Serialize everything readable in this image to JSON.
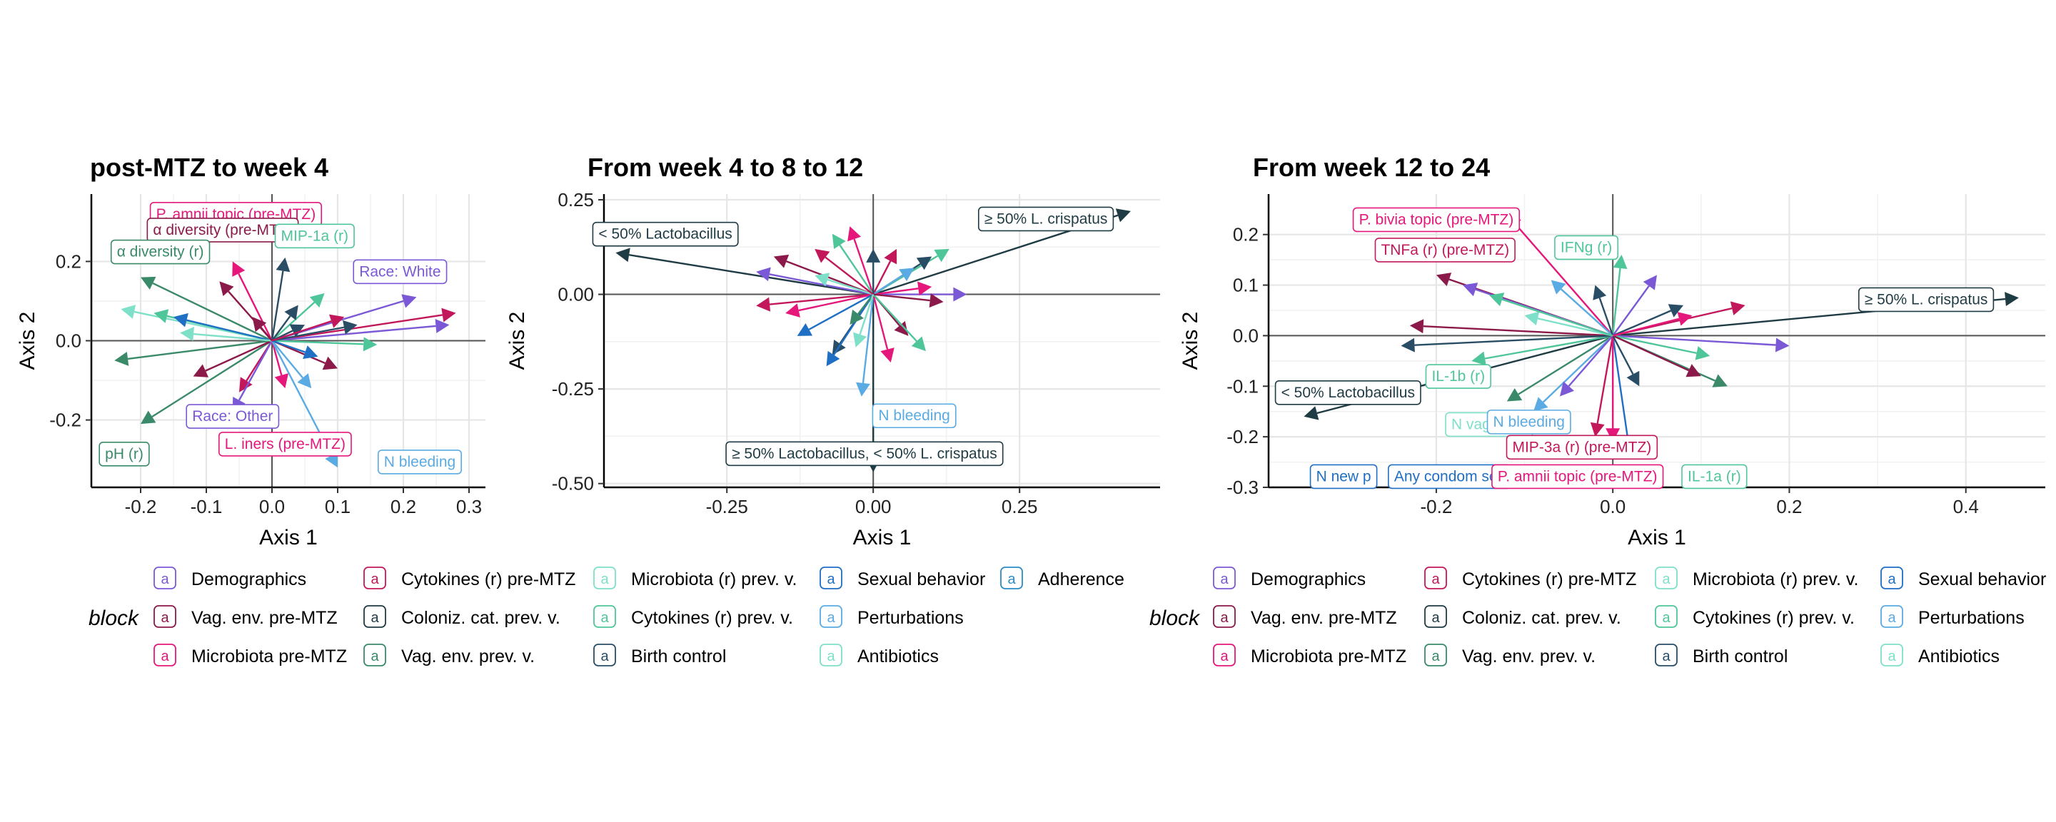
{
  "chart_data": [
    {
      "type": "scatter",
      "title": "post-MTZ to week 4",
      "xlabel": "Axis 1",
      "ylabel": "Axis 2",
      "xlim": [
        -0.275,
        0.325
      ],
      "ylim": [
        -0.37,
        0.37
      ],
      "xticks": [
        -0.2,
        -0.1,
        0.0,
        0.1,
        0.2,
        0.3
      ],
      "xtick_labels": [
        "-0.2",
        "-0.1",
        "0.0",
        "0.1",
        "0.2",
        "0.3"
      ],
      "yticks": [
        -0.2,
        0.0,
        0.2
      ],
      "ytick_labels": [
        "-0.2",
        "0.0",
        "0.2"
      ],
      "labels": [
        {
          "text": "P. amnii topic (pre-MTZ)",
          "x": -0.055,
          "y": 0.32,
          "color": "#e5177b",
          "block": "Microbiota pre-MTZ"
        },
        {
          "text": "α diversity (pre-MTZ)",
          "x": -0.075,
          "y": 0.28,
          "color": "#8b1a4a",
          "block": "Vag. env. pre-MTZ"
        },
        {
          "text": "MIP-1a (r)",
          "x": 0.065,
          "y": 0.265,
          "color": "#4fc69a",
          "block": "Cytokines (r) prev. v."
        },
        {
          "text": "α diversity (r)",
          "x": -0.17,
          "y": 0.225,
          "color": "#3a8a6a",
          "block": "Vag. env. prev. v."
        },
        {
          "text": "Race: White",
          "x": 0.195,
          "y": 0.175,
          "color": "#7b59d6",
          "block": "Demographics"
        },
        {
          "text": "Race: Other",
          "x": -0.06,
          "y": -0.19,
          "color": "#7b59d6",
          "block": "Demographics"
        },
        {
          "text": "L. iners (pre-MTZ)",
          "x": 0.02,
          "y": -0.26,
          "color": "#e5177b",
          "block": "Microbiota pre-MTZ"
        },
        {
          "text": "pH (r)",
          "x": -0.225,
          "y": -0.285,
          "color": "#3a8a6a",
          "block": "Vag. env. prev. v."
        },
        {
          "text": "N bleeding",
          "x": 0.225,
          "y": -0.305,
          "color": "#5aabe3",
          "block": "Perturbations"
        }
      ],
      "arrows": [
        {
          "x": 0.28,
          "y": 0.07,
          "color": "#c2185b"
        },
        {
          "x": 0.27,
          "y": 0.04,
          "color": "#7b59d6"
        },
        {
          "x": 0.22,
          "y": 0.11,
          "color": "#7b59d6"
        },
        {
          "x": 0.16,
          "y": -0.01,
          "color": "#4fc69a"
        },
        {
          "x": 0.13,
          "y": 0.04,
          "color": "#2a4d66"
        },
        {
          "x": 0.1,
          "y": -0.07,
          "color": "#8b1a4a"
        },
        {
          "x": 0.08,
          "y": 0.12,
          "color": "#4fc69a"
        },
        {
          "x": 0.06,
          "y": -0.12,
          "color": "#5aabe3"
        },
        {
          "x": 0.04,
          "y": 0.09,
          "color": "#2a4d66"
        },
        {
          "x": 0.02,
          "y": 0.21,
          "color": "#2a4d66"
        },
        {
          "x": -0.06,
          "y": 0.2,
          "color": "#e5177b"
        },
        {
          "x": -0.08,
          "y": 0.15,
          "color": "#8b1a4a"
        },
        {
          "x": -0.2,
          "y": 0.16,
          "color": "#3a8a6a"
        },
        {
          "x": -0.23,
          "y": 0.08,
          "color": "#7ee0c8"
        },
        {
          "x": -0.18,
          "y": 0.07,
          "color": "#4fc69a"
        },
        {
          "x": -0.15,
          "y": 0.06,
          "color": "#1f6fc5"
        },
        {
          "x": -0.24,
          "y": -0.05,
          "color": "#3a8a6a"
        },
        {
          "x": -0.2,
          "y": -0.21,
          "color": "#3a8a6a"
        },
        {
          "x": -0.12,
          "y": -0.09,
          "color": "#8b1a4a"
        },
        {
          "x": -0.05,
          "y": -0.13,
          "color": "#c2185b"
        },
        {
          "x": 0.02,
          "y": -0.12,
          "color": "#e5177b"
        },
        {
          "x": 0.1,
          "y": -0.32,
          "color": "#5aabe3"
        },
        {
          "x": -0.06,
          "y": -0.18,
          "color": "#7b59d6"
        },
        {
          "x": -0.14,
          "y": 0.02,
          "color": "#7ee0c8"
        },
        {
          "x": 0.07,
          "y": -0.04,
          "color": "#1f6fc5"
        },
        {
          "x": 0.05,
          "y": 0.04,
          "color": "#2a4d66"
        },
        {
          "x": -0.03,
          "y": 0.06,
          "color": "#8b1a4a"
        },
        {
          "x": 0.11,
          "y": 0.06,
          "color": "#c2185b"
        }
      ]
    },
    {
      "type": "scatter",
      "title": "From week 4 to 8 to 12",
      "xlabel": "Axis 1",
      "ylabel": "Axis 2",
      "xlim": [
        -0.46,
        0.49
      ],
      "ylim": [
        -0.51,
        0.265
      ],
      "xticks": [
        -0.25,
        0.0,
        0.25
      ],
      "xtick_labels": [
        "-0.25",
        "0.00",
        "0.25"
      ],
      "yticks": [
        -0.5,
        -0.25,
        0.0,
        0.25
      ],
      "ytick_labels": [
        "-0.50",
        "-0.25",
        "0.00",
        "0.25"
      ],
      "labels": [
        {
          "text": "< 50% Lactobacillus",
          "x": -0.355,
          "y": 0.16,
          "color": "#1f3b44",
          "block": "Coloniz. cat. prev. v."
        },
        {
          "text": "≥ 50% L. crispatus",
          "x": 0.295,
          "y": 0.2,
          "color": "#1f3b44",
          "block": "Coloniz. cat. prev. v."
        },
        {
          "text": "N bleeding",
          "x": 0.07,
          "y": -0.32,
          "color": "#5aabe3",
          "block": "Perturbations"
        },
        {
          "text": "≥ 50% Lactobacillus, < 50% L. crispatus",
          "x": -0.015,
          "y": -0.42,
          "color": "#1f3b44",
          "block": "Coloniz. cat. prev. v."
        }
      ],
      "arrows": [
        {
          "x": -0.44,
          "y": 0.11,
          "color": "#1f3b44"
        },
        {
          "x": 0.44,
          "y": 0.22,
          "color": "#1f3b44"
        },
        {
          "x": 0.0,
          "y": -0.47,
          "color": "#1f3b44"
        },
        {
          "x": -0.02,
          "y": -0.27,
          "color": "#5aabe3"
        },
        {
          "x": 0.16,
          "y": 0.0,
          "color": "#7b59d6"
        },
        {
          "x": 0.13,
          "y": 0.12,
          "color": "#4fc69a"
        },
        {
          "x": 0.1,
          "y": 0.1,
          "color": "#2a4d66"
        },
        {
          "x": 0.1,
          "y": 0.02,
          "color": "#e5177b"
        },
        {
          "x": -0.04,
          "y": 0.18,
          "color": "#e5177b"
        },
        {
          "x": -0.07,
          "y": 0.16,
          "color": "#4fc69a"
        },
        {
          "x": -0.17,
          "y": 0.1,
          "color": "#8b1a4a"
        },
        {
          "x": -0.2,
          "y": 0.06,
          "color": "#7b59d6"
        },
        {
          "x": -0.2,
          "y": -0.03,
          "color": "#c2185b"
        },
        {
          "x": -0.15,
          "y": -0.05,
          "color": "#e5177b"
        },
        {
          "x": -0.13,
          "y": -0.11,
          "color": "#1f6fc5"
        },
        {
          "x": -0.07,
          "y": -0.16,
          "color": "#2a4d66"
        },
        {
          "x": -0.08,
          "y": -0.19,
          "color": "#1f6fc5"
        },
        {
          "x": 0.03,
          "y": -0.18,
          "color": "#e5177b"
        },
        {
          "x": 0.06,
          "y": -0.11,
          "color": "#8b1a4a"
        },
        {
          "x": 0.09,
          "y": -0.15,
          "color": "#4fc69a"
        },
        {
          "x": 0.04,
          "y": 0.12,
          "color": "#c2185b"
        },
        {
          "x": -0.1,
          "y": 0.05,
          "color": "#7ee0c8"
        },
        {
          "x": 0.07,
          "y": 0.07,
          "color": "#5aabe3"
        },
        {
          "x": -0.04,
          "y": -0.08,
          "color": "#3a8a6a"
        },
        {
          "x": 0.0,
          "y": 0.12,
          "color": "#2a4d66"
        },
        {
          "x": -0.1,
          "y": 0.12,
          "color": "#c2185b"
        },
        {
          "x": 0.12,
          "y": -0.02,
          "color": "#8b1a4a"
        },
        {
          "x": -0.03,
          "y": -0.14,
          "color": "#7ee0c8"
        }
      ]
    },
    {
      "type": "scatter",
      "title": "From week 12 to 24",
      "xlabel": "Axis 1",
      "ylabel": "Axis 2",
      "xlim": [
        -0.39,
        0.49
      ],
      "ylim": [
        -0.3,
        0.28
      ],
      "xticks": [
        -0.2,
        0.0,
        0.2,
        0.4
      ],
      "xtick_labels": [
        "-0.2",
        "0.0",
        "0.2",
        "0.4"
      ],
      "yticks": [
        -0.3,
        -0.2,
        -0.1,
        0.0,
        0.1,
        0.2
      ],
      "ytick_labels": [
        "-0.3",
        "-0.2",
        "-0.1",
        "0.0",
        "0.1",
        "0.2"
      ],
      "labels": [
        {
          "text": "P. bivia topic (pre-MTZ)",
          "x": -0.2,
          "y": 0.23,
          "color": "#e5177b",
          "block": "Microbiota pre-MTZ"
        },
        {
          "text": "TNFa (r) (pre-MTZ)",
          "x": -0.19,
          "y": 0.17,
          "color": "#c2185b",
          "block": "Cytokines (r) pre-MTZ"
        },
        {
          "text": "IFNg (r)",
          "x": -0.03,
          "y": 0.175,
          "color": "#4fc69a",
          "block": "Cytokines (r) prev. v."
        },
        {
          "text": "≥ 50% L. crispatus",
          "x": 0.355,
          "y": 0.072,
          "color": "#1f3b44",
          "block": "Coloniz. cat. prev. v."
        },
        {
          "text": "IL-1b (r)",
          "x": -0.175,
          "y": -0.08,
          "color": "#4fc69a",
          "block": "Cytokines (r) prev. v."
        },
        {
          "text": "< 50% Lactobacillus",
          "x": -0.3,
          "y": -0.112,
          "color": "#1f3b44",
          "block": "Coloniz. cat. prev. v."
        },
        {
          "text": "N vag. abx.",
          "x": -0.14,
          "y": -0.175,
          "color": "#7ee0c8",
          "block": "Antibiotics"
        },
        {
          "text": "N bleeding",
          "x": -0.095,
          "y": -0.17,
          "color": "#5aabe3",
          "block": "Perturbations"
        },
        {
          "text": "MIP-3a (r) (pre-MTZ)",
          "x": -0.035,
          "y": -0.22,
          "color": "#c2185b",
          "block": "Cytokines (r) pre-MTZ"
        },
        {
          "text": "N new p",
          "x": -0.305,
          "y": -0.278,
          "color": "#1f6fc5",
          "block": "Sexual behavior"
        },
        {
          "text": "Any condom sex",
          "x": -0.185,
          "y": -0.278,
          "color": "#1f6fc5",
          "block": "Sexual behavior"
        },
        {
          "text": "P. amnii topic (pre-MTZ)",
          "x": -0.04,
          "y": -0.278,
          "color": "#e5177b",
          "block": "Microbiota pre-MTZ"
        },
        {
          "text": "IL-1a (r)",
          "x": 0.115,
          "y": -0.278,
          "color": "#4fc69a",
          "block": "Cytokines (r) prev. v."
        }
      ],
      "arrows": [
        {
          "x": 0.46,
          "y": 0.075,
          "color": "#1f3b44"
        },
        {
          "x": -0.35,
          "y": -0.16,
          "color": "#1f3b44"
        },
        {
          "x": -0.2,
          "y": 0.12,
          "color": "#8b1a4a"
        },
        {
          "x": -0.12,
          "y": 0.24,
          "color": "#e5177b"
        },
        {
          "x": -0.17,
          "y": 0.1,
          "color": "#7b59d6"
        },
        {
          "x": 0.01,
          "y": 0.16,
          "color": "#4fc69a"
        },
        {
          "x": 0.05,
          "y": 0.12,
          "color": "#7b59d6"
        },
        {
          "x": 0.2,
          "y": -0.02,
          "color": "#7b59d6"
        },
        {
          "x": 0.15,
          "y": 0.06,
          "color": "#c2185b"
        },
        {
          "x": 0.11,
          "y": -0.04,
          "color": "#4fc69a"
        },
        {
          "x": 0.13,
          "y": -0.1,
          "color": "#3a8a6a"
        },
        {
          "x": 0.1,
          "y": -0.08,
          "color": "#8b1a4a"
        },
        {
          "x": -0.23,
          "y": 0.02,
          "color": "#8b1a4a"
        },
        {
          "x": -0.16,
          "y": -0.05,
          "color": "#4fc69a"
        },
        {
          "x": -0.12,
          "y": -0.13,
          "color": "#3a8a6a"
        },
        {
          "x": -0.24,
          "y": -0.02,
          "color": "#2a4d66"
        },
        {
          "x": -0.09,
          "y": -0.15,
          "color": "#5aabe3"
        },
        {
          "x": -0.06,
          "y": -0.12,
          "color": "#7b59d6"
        },
        {
          "x": -0.02,
          "y": -0.2,
          "color": "#c2185b"
        },
        {
          "x": 0.02,
          "y": -0.24,
          "color": "#1f6fc5"
        },
        {
          "x": 0.0,
          "y": -0.21,
          "color": "#e5177b"
        },
        {
          "x": -0.07,
          "y": 0.11,
          "color": "#5aabe3"
        },
        {
          "x": -0.02,
          "y": 0.1,
          "color": "#2a4d66"
        },
        {
          "x": 0.08,
          "y": 0.06,
          "color": "#2a4d66"
        },
        {
          "x": 0.03,
          "y": -0.1,
          "color": "#2a4d66"
        },
        {
          "x": -0.1,
          "y": 0.04,
          "color": "#7ee0c8"
        },
        {
          "x": 0.09,
          "y": 0.04,
          "color": "#e5177b"
        },
        {
          "x": -0.14,
          "y": 0.08,
          "color": "#4fc69a"
        }
      ]
    }
  ],
  "legends": [
    {
      "title": "block",
      "columns": [
        [
          {
            "label": "Demographics",
            "color": "#7b59d6"
          },
          {
            "label": "Vag. env. pre-MTZ",
            "color": "#8b1a4a"
          },
          {
            "label": "Microbiota pre-MTZ",
            "color": "#e5177b"
          }
        ],
        [
          {
            "label": "Cytokines (r) pre-MTZ",
            "color": "#c2185b"
          },
          {
            "label": "Coloniz. cat. prev. v.",
            "color": "#1f3b44"
          },
          {
            "label": "Vag. env. prev. v.",
            "color": "#3a8a6a"
          }
        ],
        [
          {
            "label": "Microbiota (r) prev. v.",
            "color": "#7ee0c8"
          },
          {
            "label": "Cytokines (r) prev. v.",
            "color": "#4fc69a"
          },
          {
            "label": "Birth control",
            "color": "#2a4d66"
          }
        ],
        [
          {
            "label": "Sexual behavior",
            "color": "#1f6fc5"
          },
          {
            "label": "Perturbations",
            "color": "#5aabe3"
          },
          {
            "label": "Antibiotics",
            "color": "#7ee0c8"
          }
        ],
        [
          {
            "label": "Adherence",
            "color": "#2b8cc4"
          }
        ]
      ]
    },
    {
      "title": "block",
      "columns": [
        [
          {
            "label": "Demographics",
            "color": "#7b59d6"
          },
          {
            "label": "Vag. env. pre-MTZ",
            "color": "#8b1a4a"
          },
          {
            "label": "Microbiota pre-MTZ",
            "color": "#e5177b"
          }
        ],
        [
          {
            "label": "Cytokines (r) pre-MTZ",
            "color": "#c2185b"
          },
          {
            "label": "Coloniz. cat. prev. v.",
            "color": "#1f3b44"
          },
          {
            "label": "Vag. env. prev. v.",
            "color": "#3a8a6a"
          }
        ],
        [
          {
            "label": "Microbiota (r) prev. v.",
            "color": "#7ee0c8"
          },
          {
            "label": "Cytokines (r) prev. v.",
            "color": "#4fc69a"
          },
          {
            "label": "Birth control",
            "color": "#2a4d66"
          }
        ],
        [
          {
            "label": "Sexual behavior",
            "color": "#1f6fc5"
          },
          {
            "label": "Perturbations",
            "color": "#5aabe3"
          },
          {
            "label": "Antibiotics",
            "color": "#7ee0c8"
          }
        ]
      ]
    }
  ],
  "legend_key_glyph": "a"
}
